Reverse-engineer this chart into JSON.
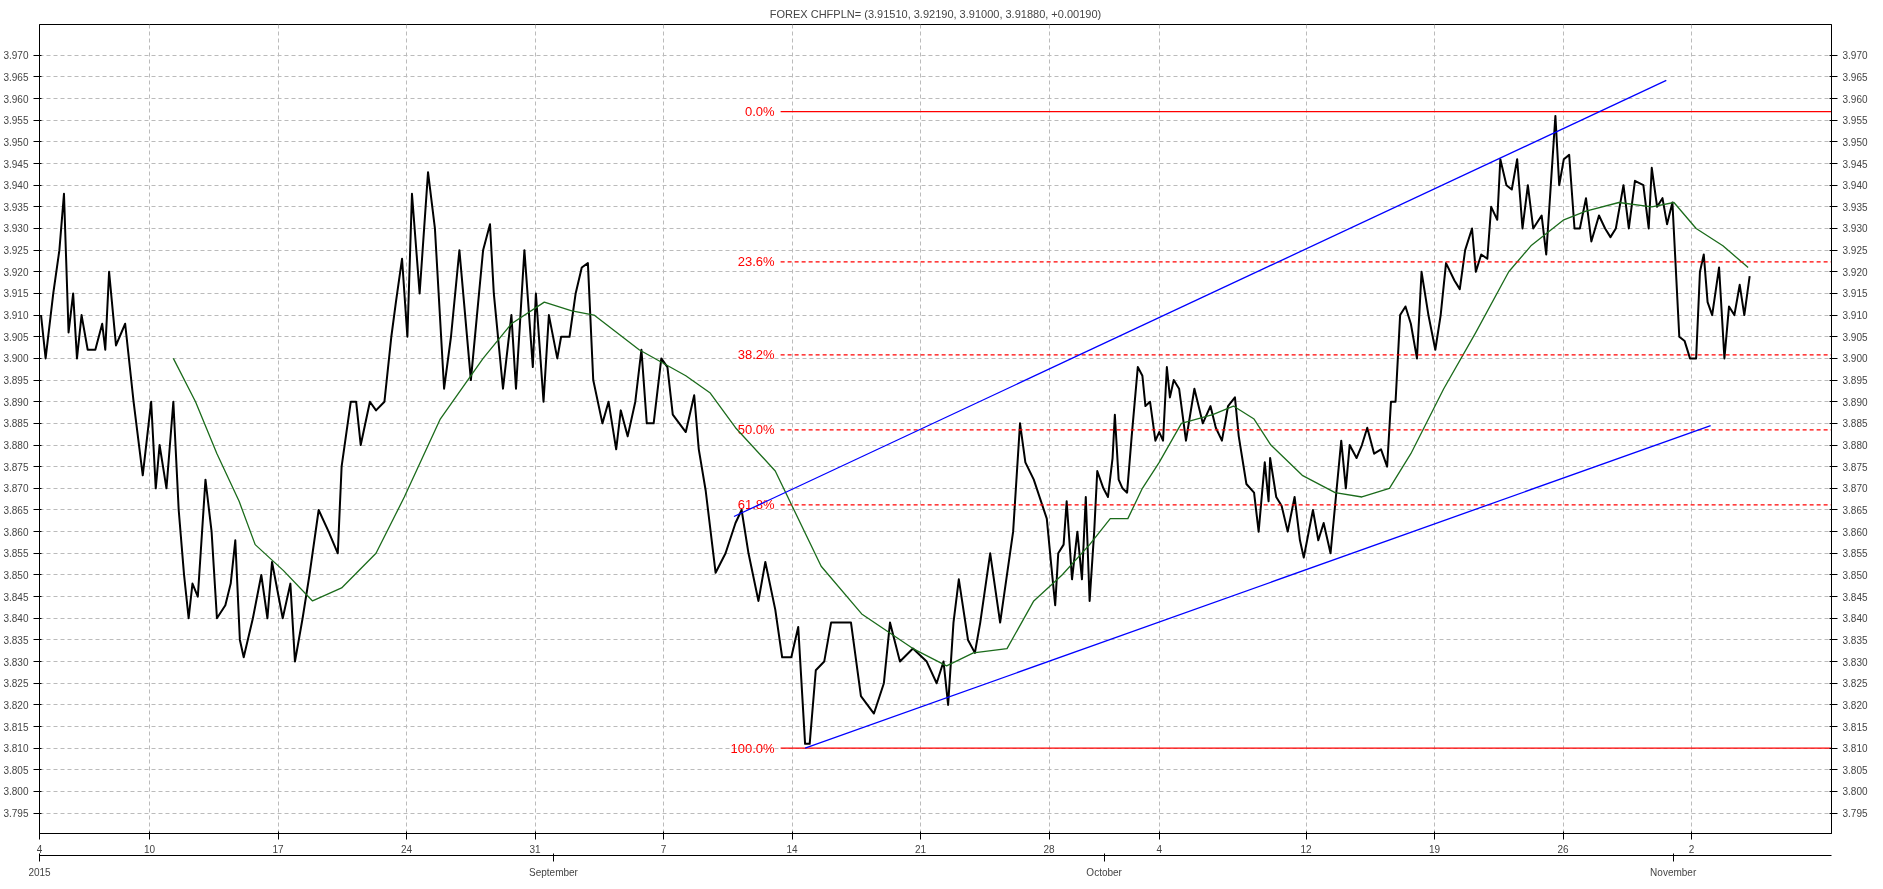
{
  "chart_data": {
    "type": "line",
    "title": "FOREX CHFPLN= (3.91510, 3.92190, 3.91000, 3.91880, +0.00190)",
    "xlim": [
      "2015-08-04",
      "2015-11-09T15:00"
    ],
    "xticks": [
      {
        "value": "2015-08-04",
        "label": "4"
      },
      {
        "value": "2015-08-10",
        "label": "10"
      },
      {
        "value": "2015-08-17",
        "label": "17"
      },
      {
        "value": "2015-08-24",
        "label": "24"
      },
      {
        "value": "2015-08-31",
        "label": "31"
      },
      {
        "value": "2015-09-07",
        "label": "7"
      },
      {
        "value": "2015-09-14",
        "label": "14"
      },
      {
        "value": "2015-09-21",
        "label": "21"
      },
      {
        "value": "2015-09-28",
        "label": "28"
      },
      {
        "value": "2015-10-04",
        "label": "4"
      },
      {
        "value": "2015-10-12",
        "label": "12"
      },
      {
        "value": "2015-10-19",
        "label": "19"
      },
      {
        "value": "2015-10-26",
        "label": "26"
      },
      {
        "value": "2015-11-02",
        "label": "2"
      }
    ],
    "x2lim": [
      "2015-08-04",
      "2015-11-09T15:00"
    ],
    "x2ticks": [
      {
        "value": "2015-08-04",
        "label": "2015"
      },
      {
        "value": "2015-09-01",
        "label": "September"
      },
      {
        "value": "2015-10-01",
        "label": "October"
      },
      {
        "value": "2015-11-01",
        "label": "November"
      }
    ],
    "ylim": [
      3.7903,
      3.9771
    ],
    "yticks": [
      3.795,
      {
        "value": 3.8,
        "label": "3.800"
      },
      3.805,
      {
        "value": 3.81,
        "label": "3.810"
      },
      3.815,
      {
        "value": 3.82,
        "label": "3.820"
      },
      3.825,
      {
        "value": 3.83,
        "label": "3.830"
      },
      3.835,
      {
        "value": 3.84,
        "label": "3.840"
      },
      3.845,
      {
        "value": 3.85,
        "label": "3.850"
      },
      3.855,
      {
        "value": 3.86,
        "label": "3.860"
      },
      3.865,
      {
        "value": 3.87,
        "label": "3.870"
      },
      3.875,
      {
        "value": 3.88,
        "label": "3.880"
      },
      3.885,
      {
        "value": 3.89,
        "label": "3.890"
      },
      3.895,
      {
        "value": 3.9,
        "label": "3.900"
      },
      3.905,
      {
        "value": 3.91,
        "label": "3.910"
      },
      3.915,
      {
        "value": 3.92,
        "label": "3.920"
      },
      3.925,
      {
        "value": 3.93,
        "label": "3.930"
      },
      3.935,
      {
        "value": 3.94,
        "label": "3.940"
      },
      3.945,
      {
        "value": 3.95,
        "label": "3.950"
      },
      3.955,
      {
        "value": 3.96,
        "label": "3.960"
      },
      3.965,
      {
        "value": 3.97,
        "label": "3.970"
      }
    ],
    "y2lim": [
      3.7903,
      3.9771
    ],
    "y2ticks": [
      3.795,
      {
        "value": 3.8,
        "label": "3.800"
      },
      3.805,
      {
        "value": 3.81,
        "label": "3.810"
      },
      3.815,
      {
        "value": 3.82,
        "label": "3.820"
      },
      3.825,
      {
        "value": 3.83,
        "label": "3.830"
      },
      3.835,
      {
        "value": 3.84,
        "label": "3.840"
      },
      3.845,
      {
        "value": 3.85,
        "label": "3.850"
      },
      3.855,
      {
        "value": 3.86,
        "label": "3.860"
      },
      3.865,
      {
        "value": 3.87,
        "label": "3.870"
      },
      3.875,
      {
        "value": 3.88,
        "label": "3.880"
      },
      3.885,
      {
        "value": 3.89,
        "label": "3.890"
      },
      3.895,
      {
        "value": 3.9,
        "label": "3.900"
      },
      3.905,
      {
        "value": 3.91,
        "label": "3.910"
      },
      3.915,
      {
        "value": 3.92,
        "label": "3.920"
      },
      3.925,
      {
        "value": 3.93,
        "label": "3.930"
      },
      3.935,
      {
        "value": 3.94,
        "label": "3.940"
      },
      3.945,
      {
        "value": 3.95,
        "label": "3.950"
      },
      3.955,
      {
        "value": 3.96,
        "label": "3.960"
      },
      3.965,
      {
        "value": 3.97,
        "label": "3.970"
      }
    ],
    "grid": true,
    "series": [
      {
        "color": "#000000",
        "x": [
          "2015-08-04T02:00",
          "2015-08-04T08:00",
          "2015-08-04T18:00",
          "2015-08-05T02:00",
          "2015-08-05T08:00",
          "2015-08-05T14:00",
          "2015-08-05T20:00",
          "2015-08-06T01:00",
          "2015-08-06T07:00",
          "2015-08-06T15:00",
          "2015-08-07T01:00",
          "2015-08-07T10:00",
          "2015-08-07T14:00",
          "2015-08-07T19:00",
          "2015-08-08T04:00",
          "2015-08-08T16:00",
          "2015-08-09T03:00",
          "2015-08-09T15:00",
          "2015-08-10T02:00",
          "2015-08-10T08:00",
          "2015-08-10T13:00",
          "2015-08-10T22:00",
          "2015-08-11T07:00",
          "2015-08-11T14:00",
          "2015-08-11T21:00",
          "2015-08-12T03:00",
          "2015-08-12T08:00",
          "2015-08-12T15:00",
          "2015-08-13T01:00",
          "2015-08-13T09:00",
          "2015-08-13T16:00",
          "2015-08-14T03:00",
          "2015-08-14T10:00",
          "2015-08-14T16:00",
          "2015-08-14T22:00",
          "2015-08-15T03:00",
          "2015-08-15T15:00",
          "2015-08-16T02:00",
          "2015-08-16T10:00",
          "2015-08-16T16:00",
          "2015-08-17T06:00",
          "2015-08-17T16:00",
          "2015-08-17T22:00",
          "2015-08-18T08:00",
          "2015-08-18T17:00",
          "2015-08-19T05:00",
          "2015-08-19T18:00",
          "2015-08-20T06:00",
          "2015-08-20T11:00",
          "2015-08-20T23:00",
          "2015-08-21T06:00",
          "2015-08-21T12:00",
          "2015-08-22T00:00",
          "2015-08-22T08:00",
          "2015-08-22T19:00",
          "2015-08-23T04:00",
          "2015-08-23T10:00",
          "2015-08-23T18:00",
          "2015-08-24T01:00",
          "2015-08-24T07:00",
          "2015-08-24T17:00",
          "2015-08-25T04:00",
          "2015-08-25T13:00",
          "2015-08-26T01:00",
          "2015-08-26T10:00",
          "2015-08-26T21:00",
          "2015-08-27T12:00",
          "2015-08-28T04:00",
          "2015-08-28T13:00",
          "2015-08-28T18:00",
          "2015-08-29T06:00",
          "2015-08-29T17:00",
          "2015-08-29T23:00",
          "2015-08-30T10:00",
          "2015-08-30T21:00",
          "2015-08-31T01:00",
          "2015-08-31T11:00",
          "2015-08-31T18:00",
          "2015-09-01T05:00",
          "2015-09-01T10:00",
          "2015-09-01T21:00",
          "2015-09-02T05:00",
          "2015-09-02T13:00",
          "2015-09-02T21:00",
          "2015-09-03T04:00",
          "2015-09-03T16:00",
          "2015-09-04T00:00",
          "2015-09-04T10:00",
          "2015-09-04T16:00",
          "2015-09-05T01:00",
          "2015-09-05T11:00",
          "2015-09-05T19:00",
          "2015-09-06T02:00",
          "2015-09-06T11:00",
          "2015-09-06T21:00",
          "2015-09-07T05:00",
          "2015-09-07T12:00",
          "2015-09-08T05:00",
          "2015-09-08T16:00",
          "2015-09-08T22:00",
          "2015-09-09T07:00",
          "2015-09-09T20:00",
          "2015-09-10T09:00",
          "2015-09-10T22:00",
          "2015-09-11T06:00",
          "2015-09-11T15:00",
          "2015-09-12T04:00",
          "2015-09-12T13:00",
          "2015-09-13T02:00",
          "2015-09-13T11:00",
          "2015-09-13T23:00",
          "2015-09-14T08:00",
          "2015-09-14T17:00",
          "2015-09-14T23:00",
          "2015-09-15T07:00",
          "2015-09-15T18:00",
          "2015-09-16T03:00",
          "2015-09-16T20:00",
          "2015-09-17T05:00",
          "2015-09-17T18:00",
          "2015-09-18T11:00",
          "2015-09-19T00:00",
          "2015-09-19T08:00",
          "2015-09-19T21:00",
          "2015-09-20T14:00",
          "2015-09-21T08:00",
          "2015-09-21T21:00",
          "2015-09-22T06:00",
          "2015-09-22T12:00",
          "2015-09-22T19:00",
          "2015-09-23T02:00",
          "2015-09-23T14:00",
          "2015-09-23T23:00",
          "2015-09-24T06:00",
          "2015-09-24T19:00",
          "2015-09-25T08:00",
          "2015-09-26T01:00",
          "2015-09-26T10:00",
          "2015-09-26T17:00",
          "2015-09-27T04:00",
          "2015-09-27T21:00",
          "2015-09-28T03:00",
          "2015-09-28T08:00",
          "2015-09-28T12:00",
          "2015-09-28T19:00",
          "2015-09-28T23:00",
          "2015-09-29T06:00",
          "2015-09-29T13:00",
          "2015-09-29T19:00",
          "2015-09-30T00:00",
          "2015-09-30T05:00",
          "2015-09-30T11:00",
          "2015-09-30T15:00",
          "2015-09-30T23:00",
          "2015-10-01T05:00",
          "2015-10-01T11:00",
          "2015-10-01T14:00",
          "2015-10-01T19:00",
          "2015-10-02T00:00",
          "2015-10-02T06:00",
          "2015-10-02T12:00",
          "2015-10-02T20:00",
          "2015-10-03T02:00",
          "2015-10-03T06:00",
          "2015-10-03T12:00",
          "2015-10-03T19:00",
          "2015-10-04T00:00",
          "2015-10-04T05:00",
          "2015-10-04T10:00",
          "2015-10-04T14:00",
          "2015-10-04T19:00",
          "2015-10-05T02:00",
          "2015-10-05T11:00",
          "2015-10-05T22:00",
          "2015-10-06T09:00",
          "2015-10-06T19:00",
          "2015-10-07T02:00",
          "2015-10-07T10:00",
          "2015-10-07T18:00",
          "2015-10-08T03:00",
          "2015-10-08T08:00",
          "2015-10-08T18:00",
          "2015-10-09T04:00",
          "2015-10-09T10:00",
          "2015-10-09T18:00",
          "2015-10-09T23:00",
          "2015-10-10T01:00",
          "2015-10-10T09:00",
          "2015-10-10T16:00",
          "2015-10-11T00:00",
          "2015-10-11T09:00",
          "2015-10-11T16:00",
          "2015-10-11T21:00",
          "2015-10-12T09:00",
          "2015-10-12T16:00",
          "2015-10-12T23:00",
          "2015-10-13T08:00",
          "2015-10-13T15:00",
          "2015-10-13T22:00",
          "2015-10-14T04:00",
          "2015-10-14T09:00",
          "2015-10-14T18:00",
          "2015-10-15T01:00",
          "2015-10-15T08:00",
          "2015-10-15T17:00",
          "2015-10-16T02:00",
          "2015-10-16T10:00",
          "2015-10-16T15:00",
          "2015-10-16T21:00",
          "2015-10-17T03:00",
          "2015-10-17T10:00",
          "2015-10-17T17:00",
          "2015-10-18T01:00",
          "2015-10-18T07:00",
          "2015-10-18T16:00",
          "2015-10-19T01:00",
          "2015-10-19T08:00",
          "2015-10-19T15:00",
          "2015-10-20T02:00",
          "2015-10-20T09:00",
          "2015-10-20T16:00",
          "2015-10-21T01:00",
          "2015-10-21T06:00",
          "2015-10-21T13:00",
          "2015-10-21T21:00",
          "2015-10-22T02:00",
          "2015-10-22T10:00",
          "2015-10-22T14:00",
          "2015-10-22T22:00",
          "2015-10-23T05:00",
          "2015-10-23T12:00",
          "2015-10-23T19:00",
          "2015-10-24T02:00",
          "2015-10-24T09:00",
          "2015-10-24T20:00",
          "2015-10-25T02:00",
          "2015-10-25T08:00",
          "2015-10-25T14:00",
          "2015-10-25T19:00",
          "2015-10-26T01:00",
          "2015-10-26T08:00",
          "2015-10-26T15:00",
          "2015-10-26T22:00",
          "2015-10-27T06:00",
          "2015-10-27T13:00",
          "2015-10-27T23:00",
          "2015-10-28T07:00",
          "2015-10-28T14:00",
          "2015-10-28T21:00",
          "2015-10-29T07:00",
          "2015-10-29T14:00",
          "2015-10-29T22:00",
          "2015-10-30T09:00",
          "2015-10-30T16:00",
          "2015-10-30T20:00",
          "2015-10-31T03:00",
          "2015-10-31T10:00",
          "2015-10-31T16:00",
          "2015-10-31T23:00",
          "2015-11-01T08:00",
          "2015-11-01T15:00",
          "2015-11-01T22:00",
          "2015-11-02T06:00",
          "2015-11-02T11:00",
          "2015-11-02T16:00",
          "2015-11-02T21:00",
          "2015-11-03T03:00",
          "2015-11-03T12:00",
          "2015-11-03T19:00",
          "2015-11-04T01:00",
          "2015-11-04T08:00",
          "2015-11-04T15:00",
          "2015-11-04T21:00",
          "2015-11-05T04:00"
        ],
        "values": [
          3.91,
          3.9,
          3.915,
          3.925,
          3.938,
          3.906,
          3.915,
          3.9,
          3.91,
          3.902,
          3.902,
          3.908,
          3.902,
          3.92,
          3.903,
          3.908,
          3.89,
          3.873,
          3.89,
          3.87,
          3.88,
          3.87,
          3.89,
          3.865,
          3.85,
          3.84,
          3.848,
          3.845,
          3.872,
          3.86,
          3.84,
          3.843,
          3.848,
          3.858,
          3.835,
          3.831,
          3.84,
          3.85,
          3.84,
          3.853,
          3.84,
          3.848,
          3.83,
          3.84,
          3.85,
          3.865,
          3.86,
          3.855,
          3.875,
          3.89,
          3.89,
          3.88,
          3.89,
          3.888,
          3.89,
          3.905,
          3.913,
          3.923,
          3.905,
          3.938,
          3.915,
          3.943,
          3.93,
          3.893,
          3.905,
          3.925,
          3.895,
          3.925,
          3.931,
          3.915,
          3.893,
          3.91,
          3.893,
          3.925,
          3.898,
          3.915,
          3.89,
          3.91,
          3.9,
          3.905,
          3.905,
          3.915,
          3.921,
          3.922,
          3.895,
          3.885,
          3.89,
          3.879,
          3.888,
          3.882,
          3.89,
          3.902,
          3.885,
          3.885,
          3.9,
          3.898,
          3.887,
          3.883,
          3.8915,
          3.879,
          3.8695,
          3.8505,
          3.855,
          3.862,
          3.865,
          3.855,
          3.844,
          3.853,
          3.842,
          3.831,
          3.831,
          3.838,
          3.811,
          3.811,
          3.828,
          3.83,
          3.839,
          3.839,
          3.839,
          3.822,
          3.818,
          3.825,
          3.839,
          3.83,
          3.833,
          3.83,
          3.825,
          3.83,
          3.82,
          3.839,
          3.849,
          3.835,
          3.832,
          3.839,
          3.855,
          3.839,
          3.86,
          3.885,
          3.876,
          3.872,
          3.863,
          3.852,
          3.843,
          3.855,
          3.857,
          3.867,
          3.849,
          3.86,
          3.849,
          3.868,
          3.844,
          3.86,
          3.874,
          3.87,
          3.868,
          3.877,
          3.887,
          3.872,
          3.87,
          3.869,
          3.882,
          3.898,
          3.896,
          3.889,
          3.89,
          3.881,
          3.883,
          3.881,
          3.898,
          3.891,
          3.895,
          3.893,
          3.881,
          3.893,
          3.885,
          3.889,
          3.884,
          3.881,
          3.889,
          3.891,
          3.882,
          3.871,
          3.869,
          3.86,
          3.876,
          3.867,
          3.877,
          3.868,
          3.866,
          3.86,
          3.868,
          3.858,
          3.854,
          3.865,
          3.858,
          3.862,
          3.855,
          3.868,
          3.881,
          3.87,
          3.88,
          3.877,
          3.88,
          3.884,
          3.878,
          3.879,
          3.875,
          3.89,
          3.89,
          3.91,
          3.912,
          3.908,
          3.9,
          3.92,
          3.91,
          3.902,
          3.91,
          3.922,
          3.918,
          3.916,
          3.925,
          3.93,
          3.92,
          3.924,
          3.923,
          3.935,
          3.932,
          3.946,
          3.94,
          3.939,
          3.946,
          3.93,
          3.94,
          3.93,
          3.933,
          3.924,
          3.94,
          3.956,
          3.94,
          3.946,
          3.947,
          3.93,
          3.93,
          3.937,
          3.927,
          3.933,
          3.93,
          3.928,
          3.93,
          3.94,
          3.93,
          3.941,
          3.94,
          3.93,
          3.944,
          3.935,
          3.937,
          3.931,
          3.936,
          3.905,
          3.904,
          3.9,
          3.9,
          3.92,
          3.924,
          3.913,
          3.91,
          3.921,
          3.9,
          3.912,
          3.91,
          3.917,
          3.91,
          3.919
        ]
      },
      {
        "color": "#1b6b1b",
        "x": [
          "2015-08-11T07:00",
          "2015-08-12T12:00",
          "2015-08-13T16:00",
          "2015-08-14T21:00",
          "2015-08-15T18:00",
          "2015-08-17T07:00",
          "2015-08-18T21:00",
          "2015-08-20T11:00",
          "2015-08-22T08:00",
          "2015-08-23T21:00",
          "2015-08-25T20:00",
          "2015-08-28T04:00",
          "2015-08-29T17:00",
          "2015-08-31T12:00",
          "2015-09-02T00:00",
          "2015-09-03T05:00",
          "2015-09-05T16:00",
          "2015-09-08T05:00",
          "2015-09-09T13:00",
          "2015-09-10T22:00",
          "2015-09-13T02:00",
          "2015-09-15T14:00",
          "2015-09-17T19:00",
          "2015-09-20T14:00",
          "2015-09-22T10:00",
          "2015-09-23T21:00",
          "2015-09-25T17:00",
          "2015-09-27T04:00",
          "2015-09-28T17:00",
          "2015-09-30T05:00",
          "2015-10-01T08:00",
          "2015-10-02T07:00",
          "2015-10-03T02:00",
          "2015-10-04T00:00",
          "2015-10-05T05:00",
          "2015-10-06T22:00",
          "2015-10-08T01:00",
          "2015-10-09T04:00",
          "2015-10-10T02:00",
          "2015-10-11T19:00",
          "2015-10-13T14:00",
          "2015-10-15T01:00",
          "2015-10-16T13:00",
          "2015-10-17T17:00",
          "2015-10-19T12:00",
          "2015-10-21T06:00",
          "2015-10-23T01:00",
          "2015-10-24T06:00",
          "2015-10-26T01:00",
          "2015-10-27T06:00",
          "2015-10-29T01:00",
          "2015-10-30T20:00",
          "2015-11-01T01:00",
          "2015-11-02T06:00",
          "2015-11-03T17:00",
          "2015-11-05T02:00"
        ],
        "values": [
          3.9,
          3.89,
          3.878,
          3.867,
          3.857,
          3.851,
          3.844,
          3.847,
          3.855,
          3.868,
          3.886,
          3.9,
          3.908,
          3.913,
          3.911,
          3.91,
          3.902,
          3.896,
          3.892,
          3.884,
          3.874,
          3.852,
          3.841,
          3.833,
          3.829,
          3.832,
          3.833,
          3.844,
          3.85,
          3.857,
          3.863,
          3.863,
          3.87,
          3.876,
          3.885,
          3.887,
          3.889,
          3.886,
          3.88,
          3.873,
          3.869,
          3.868,
          3.87,
          3.878,
          3.893,
          3.906,
          3.92,
          3.926,
          3.932,
          3.934,
          3.936,
          3.935,
          3.936,
          3.93,
          3.926,
          3.921
        ]
      },
      {
        "name": "0.0%",
        "color": "#ff0000",
        "line_style": "solid",
        "x": [
          "2015-09-13T09:00",
          "2015-11-09T15:00"
        ],
        "values": [
          3.957,
          3.957
        ]
      },
      {
        "name": "23.6%",
        "color": "#ff0000",
        "line_style": "dashed",
        "x": [
          "2015-09-13T09:00",
          "2015-11-09T15:00"
        ],
        "values": [
          3.9223,
          3.9223
        ]
      },
      {
        "name": "38.2%",
        "color": "#ff0000",
        "line_style": "dashed",
        "x": [
          "2015-09-13T09:00",
          "2015-11-09T15:00"
        ],
        "values": [
          3.9008,
          3.9008
        ]
      },
      {
        "name": "50.0%",
        "color": "#ff0000",
        "line_style": "dashed",
        "x": [
          "2015-09-13T09:00",
          "2015-11-09T15:00"
        ],
        "values": [
          3.8835,
          3.8835
        ]
      },
      {
        "name": "61.8%",
        "color": "#ff0000",
        "line_style": "dashed",
        "x": [
          "2015-09-13T09:00",
          "2015-11-09T15:00"
        ],
        "values": [
          3.8662,
          3.8662
        ]
      },
      {
        "name": "100.0%",
        "color": "#ff0000",
        "line_style": "solid",
        "x": [
          "2015-09-13T09:00",
          "2015-11-09T15:00"
        ],
        "values": [
          3.81,
          3.81
        ]
      },
      {
        "color": "#0000ff",
        "x": [
          "2015-09-10T20:00",
          "2015-10-31T15:00"
        ],
        "values": [
          3.8635,
          3.9642
        ]
      },
      {
        "color": "#0000ff",
        "x": [
          "2015-09-14T17:00",
          "2015-11-03T01:00"
        ],
        "values": [
          3.81,
          3.8845
        ]
      }
    ]
  }
}
